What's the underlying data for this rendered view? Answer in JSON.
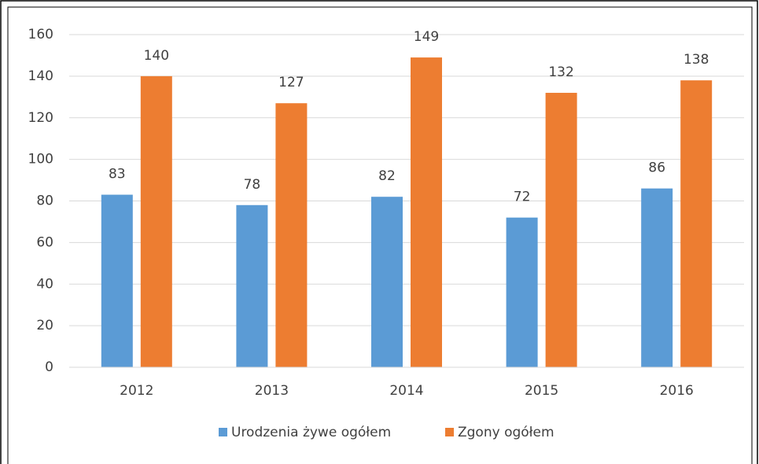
{
  "chart_data": {
    "type": "bar",
    "categories": [
      "2012",
      "2013",
      "2014",
      "2015",
      "2016"
    ],
    "series": [
      {
        "name": "Urodzenia żywe ogółem",
        "color": "#5b9bd5",
        "values": [
          83,
          78,
          82,
          72,
          86
        ]
      },
      {
        "name": "Zgony ogółem",
        "color": "#ed7d31",
        "values": [
          140,
          127,
          149,
          132,
          138
        ]
      }
    ],
    "ylim": [
      0,
      160
    ],
    "yticks": [
      0,
      20,
      40,
      60,
      80,
      100,
      120,
      140,
      160
    ],
    "grid": true,
    "legend": "bottom"
  }
}
